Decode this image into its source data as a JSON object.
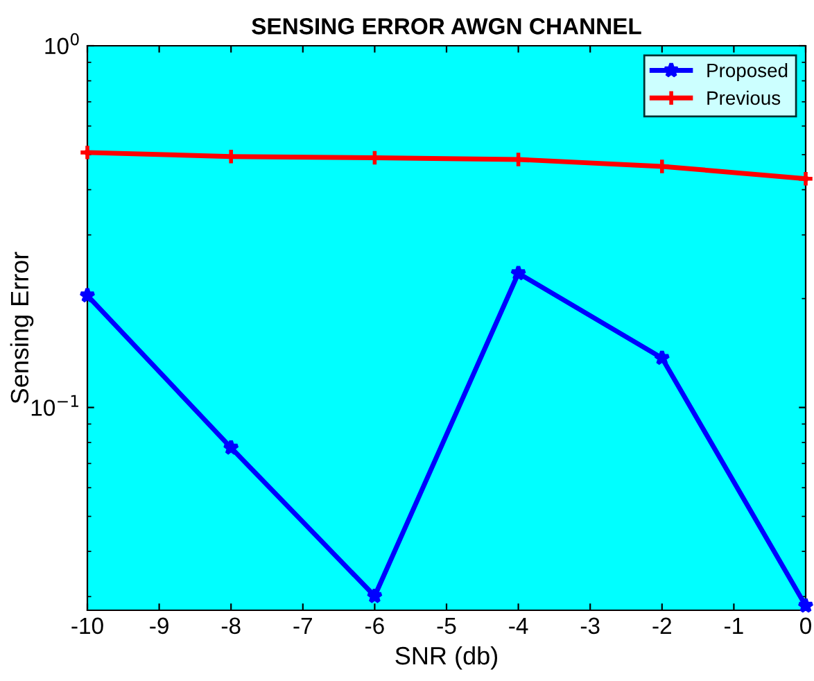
{
  "chart_data": {
    "type": "line",
    "title": "SENSING ERROR AWGN CHANNEL",
    "xlabel": "SNR (db)",
    "ylabel": "Sensing Error",
    "x": [
      -10,
      -8,
      -6,
      -4,
      -2,
      0
    ],
    "series": [
      {
        "name": "Proposed",
        "color": "#0000ff",
        "values": [
          0.204,
          0.0774,
          0.0301,
          0.235,
          0.137,
          0.0283
        ],
        "marker": "star"
      },
      {
        "name": "Previous",
        "color": "#ff0000",
        "values": [
          0.507,
          0.494,
          0.49,
          0.485,
          0.464,
          0.429
        ],
        "marker": "cross"
      }
    ],
    "log": "y",
    "xlim": [
      -10,
      0
    ],
    "ylim": [
      0.0275,
      1
    ],
    "xticks": [
      -10,
      -9,
      -8,
      -7,
      -6,
      -5,
      -4,
      -3,
      -2,
      -1,
      0
    ],
    "yticks": [
      {
        "value": 0.1,
        "label": "10$^{−1}$"
      },
      {
        "value": 1,
        "label": "10$^{0}$"
      }
    ],
    "grid": false,
    "legend": "top right",
    "line_style": "solid"
  }
}
